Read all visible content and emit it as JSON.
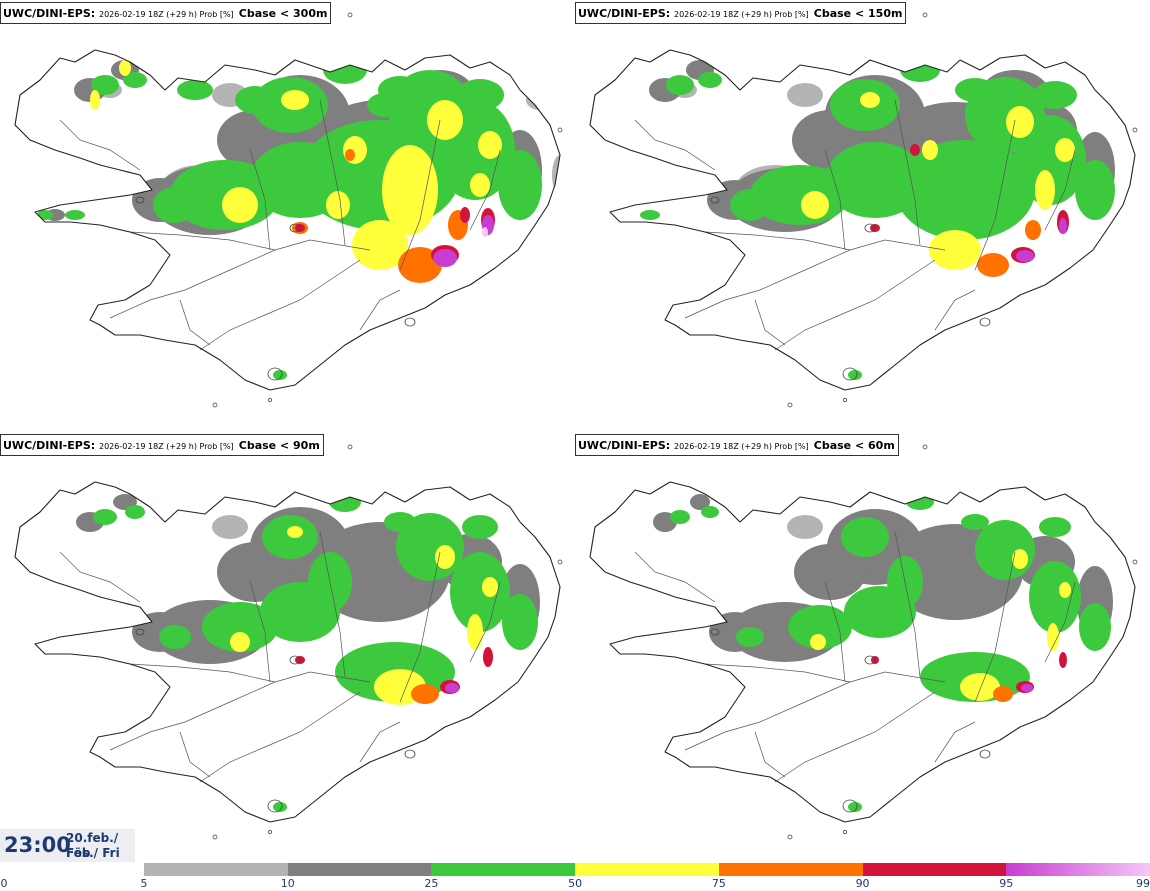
{
  "panels": [
    {
      "model": "UWC/DINI-EPS",
      "run": "2026-02-19 18Z (+29 h) Prob [%]",
      "variable": "Cbase < 300m"
    },
    {
      "model": "UWC/DINI-EPS",
      "run": "2026-02-19 18Z (+29 h) Prob [%]",
      "variable": "Cbase < 150m"
    },
    {
      "model": "UWC/DINI-EPS",
      "run": "2026-02-19 18Z (+29 h) Prob [%]",
      "variable": "Cbase < 90m"
    },
    {
      "model": "UWC/DINI-EPS",
      "run": "2026-02-19 18Z (+29 h) Prob [%]",
      "variable": "Cbase < 60m"
    }
  ],
  "valid_time": {
    "time": "23:00",
    "date": "20.feb./ Feb",
    "day": "Fös./ Fri"
  },
  "colorbar": {
    "labels": [
      "0",
      "5",
      "10",
      "25",
      "50",
      "75",
      "90",
      "95",
      "99"
    ],
    "bins": [
      {
        "from": 5,
        "to": 10,
        "color": "#b4b4b4"
      },
      {
        "from": 10,
        "to": 25,
        "color": "#7f7f7f"
      },
      {
        "from": 25,
        "to": 50,
        "color": "#3dc93d"
      },
      {
        "from": 50,
        "to": 75,
        "color": "#ffff3c"
      },
      {
        "from": 75,
        "to": 90,
        "color": "#ff7200"
      },
      {
        "from": 90,
        "to": 95,
        "color": "#d2143c"
      },
      {
        "from": 95,
        "to": 99,
        "color": "#c83cd2",
        "to_color": "#f5c8f5"
      }
    ]
  }
}
